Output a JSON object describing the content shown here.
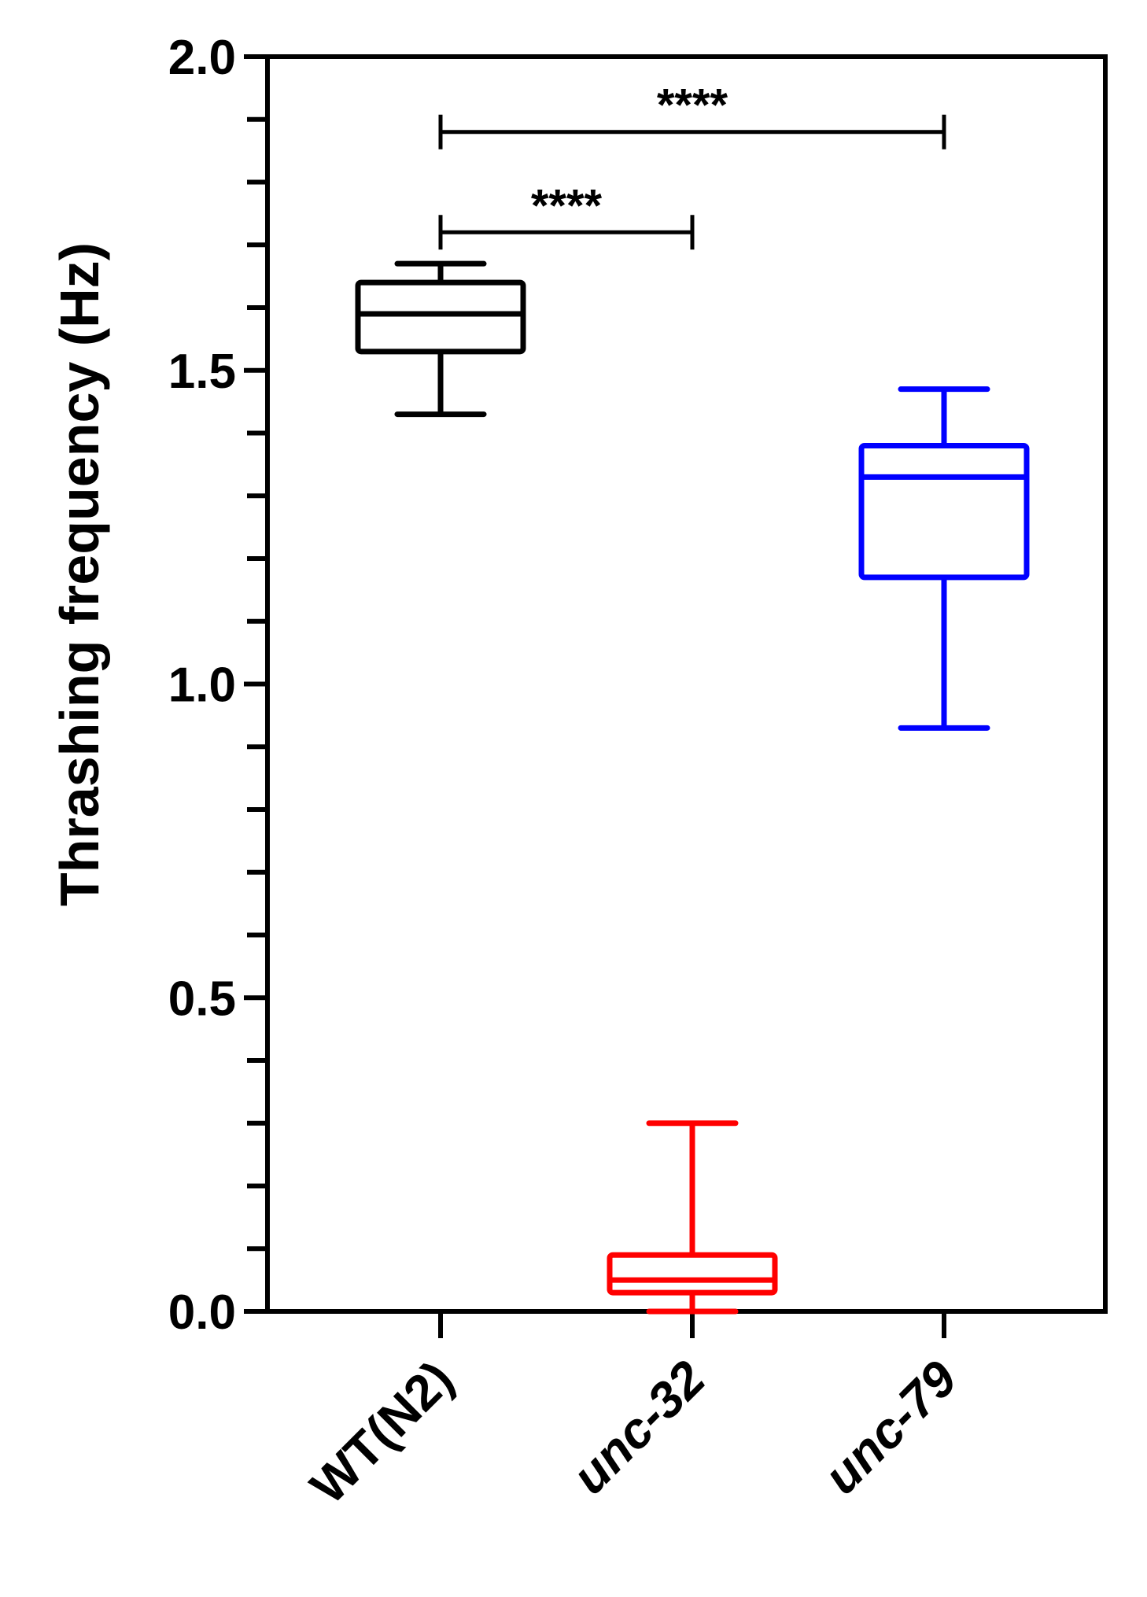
{
  "chart_data": {
    "type": "box",
    "title": "",
    "xlabel": "",
    "ylabel": "Thrashing frequency (Hz)",
    "ylim": [
      0,
      2.0
    ],
    "y_major_ticks": [
      0.0,
      0.5,
      1.0,
      1.5,
      2.0
    ],
    "y_tick_labels": [
      "0.0",
      "0.5",
      "1.0",
      "1.5",
      "2.0"
    ],
    "y_minor_step": 0.1,
    "grid": false,
    "categories": [
      "WT(N2)",
      "unc-32",
      "unc-79"
    ],
    "series": [
      {
        "category": "WT(N2)",
        "color": "#000000",
        "min": 1.43,
        "q1": 1.53,
        "median": 1.59,
        "q3": 1.64,
        "max": 1.67
      },
      {
        "category": "unc-32",
        "color": "#ff0000",
        "min": 0.0,
        "q1": 0.03,
        "median": 0.05,
        "q3": 0.09,
        "max": 0.3
      },
      {
        "category": "unc-79",
        "color": "#0000ff",
        "min": 0.93,
        "q1": 1.17,
        "median": 1.33,
        "q3": 1.38,
        "max": 1.47
      }
    ],
    "significance": [
      {
        "from": "WT(N2)",
        "to": "unc-32",
        "label": "****",
        "y": 1.72
      },
      {
        "from": "WT(N2)",
        "to": "unc-79",
        "label": "****",
        "y": 1.88
      }
    ]
  }
}
